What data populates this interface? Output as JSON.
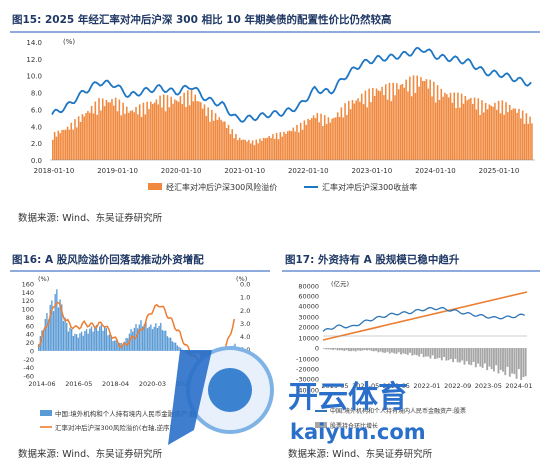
{
  "fig15": {
    "title": "图15:  2025 年经汇率对冲后沪深 300 相比 10 年期美债的配置性价比仍然较高",
    "source": "数据来源:  Wind、东吴证券研究所"
  },
  "fig16": {
    "title": "图16:  A 股风险溢价回落或推动外资增配",
    "source": "数据来源:  Wind、东吴证券研究所"
  },
  "fig17": {
    "title": "图17:  外资持有 A 股规模已稳中趋升",
    "source": "数据来源:  Wind、东吴证券研究所"
  },
  "watermark": {
    "brand": "开云体育",
    "domain": "kaiyun.com"
  },
  "chart_data": [
    {
      "id": "fig15",
      "type": "bar+line",
      "unit_label": "(%)",
      "x_ticks": [
        "2018-01-10",
        "2019-01-10",
        "2020-01-10",
        "2021-01-10",
        "2022-01-10",
        "2023-01-10",
        "2024-01-10",
        "2025-01-10"
      ],
      "y_ticks": [
        "0.0",
        "2.0",
        "4.0",
        "6.0",
        "8.0",
        "10.0",
        "12.0",
        "14.0"
      ],
      "ylim": [
        0,
        14
      ],
      "legend_position": "bottom",
      "colors": {
        "bar": "#f0883e",
        "line": "#1f77c4"
      },
      "series": [
        {
          "name": "经汇率对冲后沪深300风险溢价",
          "kind": "bar",
          "x": [
            "2018-01",
            "2018-04",
            "2018-07",
            "2018-10",
            "2019-01",
            "2019-04",
            "2019-07",
            "2019-10",
            "2020-01",
            "2020-04",
            "2020-07",
            "2020-10",
            "2021-01",
            "2021-04",
            "2021-07",
            "2021-10",
            "2022-01",
            "2022-04",
            "2022-07",
            "2022-10",
            "2023-01",
            "2023-04",
            "2023-07",
            "2023-10",
            "2024-01",
            "2024-04",
            "2024-07",
            "2024-10",
            "2025-01",
            "2025-04",
            "2025-07",
            "2025-09"
          ],
          "values": [
            2.8,
            3.6,
            5.0,
            6.4,
            6.6,
            5.4,
            6.0,
            6.8,
            6.6,
            7.4,
            5.5,
            4.4,
            2.4,
            2.0,
            2.6,
            3.0,
            3.8,
            5.0,
            4.4,
            6.0,
            7.0,
            7.8,
            8.0,
            8.6,
            9.0,
            7.6,
            7.0,
            6.8,
            6.0,
            6.2,
            5.6,
            4.4
          ]
        },
        {
          "name": "汇率对冲后沪深300收益率",
          "kind": "line",
          "x": [
            "2018-01",
            "2018-04",
            "2018-07",
            "2018-10",
            "2019-01",
            "2019-04",
            "2019-07",
            "2019-10",
            "2020-01",
            "2020-04",
            "2020-07",
            "2020-10",
            "2021-01",
            "2021-04",
            "2021-07",
            "2021-10",
            "2022-01",
            "2022-04",
            "2022-07",
            "2022-10",
            "2023-01",
            "2023-04",
            "2023-07",
            "2023-10",
            "2024-01",
            "2024-04",
            "2024-07",
            "2024-10",
            "2025-01",
            "2025-04",
            "2025-07",
            "2025-09"
          ],
          "values": [
            5.4,
            6.4,
            8.0,
            9.2,
            9.0,
            7.6,
            8.2,
            8.6,
            8.0,
            8.8,
            7.2,
            6.6,
            4.8,
            5.0,
            5.4,
            5.6,
            6.4,
            8.4,
            8.0,
            10.0,
            11.4,
            12.0,
            12.2,
            12.6,
            13.2,
            12.2,
            12.0,
            11.6,
            10.4,
            10.2,
            9.6,
            9.0
          ]
        }
      ]
    },
    {
      "id": "fig16",
      "type": "bar+line",
      "unit_label_left": "(%)",
      "unit_label_right": "(%)",
      "x_ticks": [
        "2014-06",
        "2016-05",
        "2018-04",
        "2020-03",
        "2022-02",
        "2024-01"
      ],
      "y_ticks_left": [
        "-60",
        "-40",
        "-20",
        "0",
        "20",
        "40",
        "60",
        "80",
        "100",
        "120",
        "140",
        "160"
      ],
      "y_ticks_right": [
        "7.0",
        "6.0",
        "5.0",
        "4.0",
        "3.0",
        "2.0",
        "1.0",
        "0.0"
      ],
      "ylim_left": [
        -60,
        160
      ],
      "ylim_right_inverted": [
        7,
        0
      ],
      "legend_position": "bottom",
      "colors": {
        "bar": "#5b9bd5",
        "line": "#ed7d31"
      },
      "series": [
        {
          "name": "中国:境外机构和个人持有境内人民币金融资产:股票:同比",
          "kind": "bar",
          "x": [
            "2014-06",
            "2014-12",
            "2015-06",
            "2015-12",
            "2016-06",
            "2016-12",
            "2017-06",
            "2017-12",
            "2018-06",
            "2018-12",
            "2019-06",
            "2019-12",
            "2020-06",
            "2020-12",
            "2021-06",
            "2021-12",
            "2022-06",
            "2022-12",
            "2023-06",
            "2023-12",
            "2024-06",
            "2024-12"
          ],
          "values": [
            20,
            90,
            135,
            60,
            35,
            45,
            55,
            55,
            25,
            15,
            50,
            65,
            55,
            60,
            30,
            10,
            -10,
            -5,
            -20,
            -25,
            5,
            15
          ]
        },
        {
          "name": "汇率对冲后沪深300风险溢价(右轴,逆序)",
          "kind": "line",
          "x": [
            "2014-06",
            "2014-12",
            "2015-06",
            "2015-12",
            "2016-06",
            "2016-12",
            "2017-06",
            "2017-12",
            "2018-06",
            "2018-12",
            "2019-06",
            "2019-12",
            "2020-06",
            "2020-12",
            "2021-06",
            "2021-12",
            "2022-06",
            "2022-12",
            "2023-06",
            "2023-12",
            "2024-06",
            "2024-12"
          ],
          "values": [
            4.8,
            3.0,
            1.2,
            2.8,
            3.4,
            3.0,
            3.2,
            3.0,
            4.0,
            4.8,
            4.2,
            3.6,
            2.2,
            1.5,
            2.5,
            3.6,
            4.9,
            5.8,
            5.2,
            5.6,
            5.0,
            2.8
          ]
        }
      ]
    },
    {
      "id": "fig17",
      "type": "bar+line",
      "unit_label": "(亿元)",
      "x_ticks": [
        "2019-05",
        "2020-05",
        "2021-05",
        "2022-01",
        "2022-09",
        "2023-05",
        "2024-01"
      ],
      "y_ticks": [
        "-40000",
        "-30000",
        "-20000",
        "-10000",
        "0",
        "10000",
        "20000",
        "30000",
        "40000",
        "60000",
        "80000"
      ],
      "legend_position": "bottom",
      "colors": {
        "bar": "#a6a6a6",
        "line": "#2e75b6",
        "trend": "#ed7d31"
      },
      "series": [
        {
          "name": "中国:境外机构和个人持有境内人民币金融资产:股票",
          "kind": "line",
          "values": [
            16000,
            21000,
            20000,
            26000,
            30000,
            33000,
            34000,
            37000,
            38000,
            36000,
            33000,
            31000,
            29000,
            30000,
            32000
          ]
        },
        {
          "name": "线性趋势",
          "kind": "line",
          "values": [
            8000,
            68000
          ]
        },
        {
          "name": "股票持仓环比增长",
          "kind": "bar",
          "values": [
            -1000,
            -2000,
            -3000,
            -2000,
            -4000,
            -5000,
            -6000,
            -8000,
            -10000,
            -12000,
            -15000,
            -18000,
            -22000,
            -26000,
            -30000
          ]
        }
      ]
    }
  ]
}
